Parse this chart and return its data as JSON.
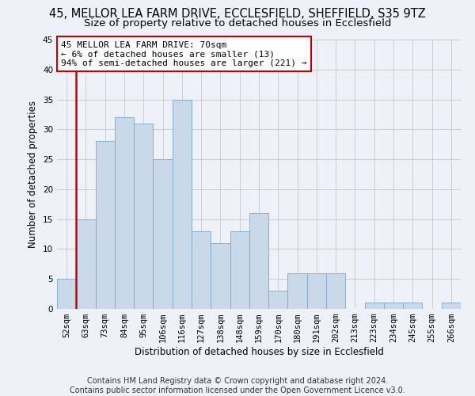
{
  "title_line1": "45, MELLOR LEA FARM DRIVE, ECCLESFIELD, SHEFFIELD, S35 9TZ",
  "title_line2": "Size of property relative to detached houses in Ecclesfield",
  "xlabel": "Distribution of detached houses by size in Ecclesfield",
  "ylabel": "Number of detached properties",
  "categories": [
    "52sqm",
    "63sqm",
    "73sqm",
    "84sqm",
    "95sqm",
    "106sqm",
    "116sqm",
    "127sqm",
    "138sqm",
    "148sqm",
    "159sqm",
    "170sqm",
    "180sqm",
    "191sqm",
    "202sqm",
    "213sqm",
    "223sqm",
    "234sqm",
    "245sqm",
    "255sqm",
    "266sqm"
  ],
  "values": [
    5,
    15,
    28,
    32,
    31,
    25,
    35,
    13,
    11,
    13,
    16,
    3,
    6,
    6,
    6,
    0,
    1,
    1,
    1,
    0,
    1
  ],
  "bar_color": "#c9d9ea",
  "bar_edge_color": "#7aaac8",
  "red_line_after_bar": 0,
  "annotation_text": "45 MELLOR LEA FARM DRIVE: 70sqm\n← 6% of detached houses are smaller (13)\n94% of semi-detached houses are larger (221) →",
  "annotation_box_color": "white",
  "annotation_box_edge_color": "#cc0000",
  "red_line_color": "#cc0000",
  "ylim": [
    0,
    45
  ],
  "yticks": [
    0,
    5,
    10,
    15,
    20,
    25,
    30,
    35,
    40,
    45
  ],
  "grid_color": "#c8c8c8",
  "background_color": "#eef2f8",
  "footer_text": "Contains HM Land Registry data © Crown copyright and database right 2024.\nContains public sector information licensed under the Open Government Licence v3.0.",
  "title_fontsize": 10.5,
  "subtitle_fontsize": 9.5,
  "ylabel_fontsize": 8.5,
  "xlabel_fontsize": 8.5,
  "tick_fontsize": 7.5,
  "annotation_fontsize": 8,
  "footer_fontsize": 7
}
